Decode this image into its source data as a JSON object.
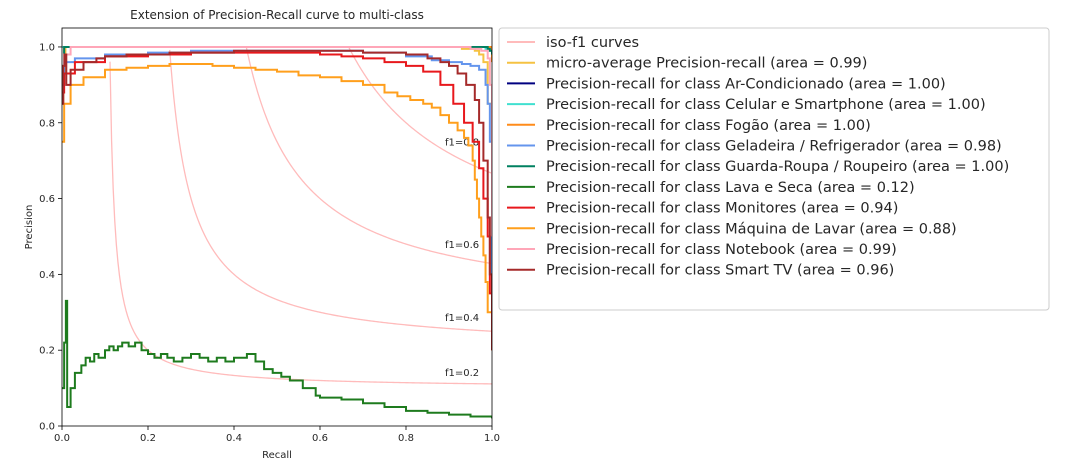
{
  "chart_data": {
    "type": "line",
    "title": "Extension of Precision-Recall curve to multi-class",
    "xlabel": "Recall",
    "ylabel": "Precision",
    "xlim": [
      0.0,
      1.0
    ],
    "ylim": [
      0.0,
      1.05
    ],
    "x_ticks": [
      "0.0",
      "0.2",
      "0.4",
      "0.6",
      "0.8",
      "1.0"
    ],
    "y_ticks": [
      "0.0",
      "0.2",
      "0.4",
      "0.6",
      "0.8",
      "1.0"
    ],
    "grid": false,
    "legend_position": "outside-right",
    "iso_f1": {
      "legend_label": "iso-f1 curves",
      "color": "#ffbbbb",
      "values": [
        0.2,
        0.4,
        0.6,
        0.8
      ],
      "labels": [
        "f1=0.2",
        "f1=0.4",
        "f1=0.6",
        "f1=0.8"
      ]
    },
    "series": [
      {
        "name": "micro-average Precision-recall (area = 0.99)",
        "color": "#f5c242",
        "x": [
          0,
          0.003,
          0.008,
          0.1,
          0.3,
          0.5,
          0.7,
          0.85,
          0.93,
          0.96,
          0.97,
          0.98,
          0.99,
          1.0
        ],
        "y": [
          0.85,
          0.93,
          1.0,
          1.0,
          1.0,
          1.0,
          1.0,
          1.0,
          0.995,
          0.99,
          0.98,
          0.96,
          0.85,
          0.25
        ]
      },
      {
        "name": "Precision-recall for class Ar-Condicionado (area = 1.00)",
        "color": "#000080",
        "x": [
          0,
          0.01,
          0.5,
          0.99,
          0.999,
          1.0
        ],
        "y": [
          1.0,
          1.0,
          1.0,
          1.0,
          1.0,
          0.98
        ]
      },
      {
        "name": "Precision-recall for class Celular e Smartphone (area = 1.00)",
        "color": "#40e0d0",
        "x": [
          0,
          0.01,
          0.5,
          0.97,
          0.985,
          0.995,
          1.0
        ],
        "y": [
          1.0,
          1.0,
          1.0,
          1.0,
          0.995,
          0.99,
          0.97
        ]
      },
      {
        "name": "Precision-recall for class Fogão (area = 1.00)",
        "color": "#ff8c1a",
        "x": [
          0,
          0.005,
          0.01,
          0.5,
          0.995,
          1.0
        ],
        "y": [
          0.9,
          1.0,
          1.0,
          1.0,
          1.0,
          0.96
        ]
      },
      {
        "name": "Precision-recall for class Geladeira / Refrigerador (area = 0.98)",
        "color": "#6495ed",
        "x": [
          0,
          0.005,
          0.03,
          0.1,
          0.2,
          0.3,
          0.4,
          0.5,
          0.6,
          0.7,
          0.8,
          0.86,
          0.9,
          0.93,
          0.95,
          0.97,
          0.985,
          0.99,
          0.995,
          1.0
        ],
        "y": [
          0.9,
          0.96,
          0.97,
          0.98,
          0.985,
          0.99,
          0.99,
          0.99,
          0.99,
          0.985,
          0.975,
          0.965,
          0.96,
          0.955,
          0.95,
          0.94,
          0.9,
          0.85,
          0.75,
          0.3
        ]
      },
      {
        "name": "Precision-recall for class Guarda-Roupa / Roupeiro (area = 1.00)",
        "color": "#008060",
        "x": [
          0,
          0.005,
          0.01,
          0.5,
          0.98,
          0.99,
          0.995,
          1.0
        ],
        "y": [
          0.95,
          1.0,
          1.0,
          1.0,
          1.0,
          0.995,
          0.99,
          0.98
        ]
      },
      {
        "name": "Precision-recall for class Lava e Seca (area = 0.12)",
        "color": "#1e7b1e",
        "x": [
          0,
          0.005,
          0.009,
          0.012,
          0.02,
          0.03,
          0.045,
          0.055,
          0.065,
          0.075,
          0.085,
          0.1,
          0.11,
          0.12,
          0.13,
          0.14,
          0.155,
          0.17,
          0.185,
          0.2,
          0.215,
          0.23,
          0.245,
          0.26,
          0.28,
          0.3,
          0.32,
          0.34,
          0.36,
          0.38,
          0.4,
          0.43,
          0.45,
          0.47,
          0.49,
          0.51,
          0.53,
          0.56,
          0.59,
          0.6,
          0.65,
          0.7,
          0.75,
          0.8,
          0.85,
          0.9,
          0.95,
          1.0
        ],
        "y": [
          0.1,
          0.22,
          0.33,
          0.05,
          0.1,
          0.14,
          0.16,
          0.18,
          0.17,
          0.19,
          0.18,
          0.2,
          0.21,
          0.2,
          0.21,
          0.22,
          0.21,
          0.22,
          0.2,
          0.19,
          0.18,
          0.19,
          0.18,
          0.17,
          0.18,
          0.19,
          0.18,
          0.17,
          0.18,
          0.17,
          0.18,
          0.19,
          0.17,
          0.15,
          0.14,
          0.13,
          0.12,
          0.1,
          0.08,
          0.075,
          0.07,
          0.06,
          0.05,
          0.04,
          0.035,
          0.03,
          0.025,
          0.02
        ]
      },
      {
        "name": "Precision-recall for class Monitores (area = 0.94)",
        "color": "#e8181c",
        "x": [
          0,
          0.005,
          0.03,
          0.1,
          0.2,
          0.3,
          0.4,
          0.5,
          0.6,
          0.65,
          0.7,
          0.75,
          0.8,
          0.84,
          0.88,
          0.91,
          0.935,
          0.955,
          0.97,
          0.98,
          0.99,
          0.995,
          1.0
        ],
        "y": [
          0.88,
          0.93,
          0.96,
          0.975,
          0.98,
          0.985,
          0.985,
          0.985,
          0.98,
          0.975,
          0.97,
          0.96,
          0.95,
          0.935,
          0.9,
          0.85,
          0.8,
          0.75,
          0.68,
          0.6,
          0.5,
          0.35,
          0.2
        ]
      },
      {
        "name": "Precision-recall for class Máquina de Lavar (area = 0.88)",
        "color": "#ff9f1c",
        "x": [
          0,
          0.005,
          0.02,
          0.05,
          0.1,
          0.15,
          0.2,
          0.25,
          0.3,
          0.35,
          0.4,
          0.45,
          0.5,
          0.55,
          0.6,
          0.65,
          0.7,
          0.75,
          0.78,
          0.81,
          0.84,
          0.86,
          0.88,
          0.9,
          0.92,
          0.935,
          0.945,
          0.955,
          0.96,
          0.965,
          0.97,
          0.975,
          0.98,
          0.985,
          0.99,
          1.0
        ],
        "y": [
          0.75,
          0.85,
          0.9,
          0.92,
          0.94,
          0.945,
          0.95,
          0.955,
          0.955,
          0.95,
          0.945,
          0.94,
          0.935,
          0.925,
          0.92,
          0.91,
          0.9,
          0.88,
          0.87,
          0.86,
          0.85,
          0.84,
          0.82,
          0.8,
          0.78,
          0.76,
          0.74,
          0.7,
          0.65,
          0.6,
          0.55,
          0.5,
          0.45,
          0.38,
          0.3,
          0.2
        ]
      },
      {
        "name": "Precision-recall for class Notebook (area = 0.99)",
        "color": "#ffa6b8",
        "x": [
          0,
          0.005,
          0.02,
          0.2,
          0.5,
          0.8,
          0.95,
          0.975,
          0.99,
          0.995,
          1.0
        ],
        "y": [
          0.95,
          0.98,
          1.0,
          1.0,
          1.0,
          1.0,
          0.995,
          0.99,
          0.97,
          0.9,
          0.5
        ]
      },
      {
        "name": "Precision-recall for class Smart TV (area = 0.96)",
        "color": "#a52a2a",
        "x": [
          0,
          0.003,
          0.006,
          0.01,
          0.02,
          0.05,
          0.08,
          0.1,
          0.15,
          0.2,
          0.25,
          0.3,
          0.4,
          0.5,
          0.6,
          0.7,
          0.75,
          0.8,
          0.85,
          0.88,
          0.9,
          0.92,
          0.94,
          0.96,
          0.97,
          0.98,
          0.99,
          0.995,
          1.0
        ],
        "y": [
          0.85,
          0.95,
          0.98,
          0.9,
          0.94,
          0.96,
          0.97,
          0.975,
          0.98,
          0.98,
          0.985,
          0.985,
          0.99,
          0.99,
          0.99,
          0.985,
          0.985,
          0.98,
          0.97,
          0.96,
          0.95,
          0.93,
          0.9,
          0.86,
          0.8,
          0.7,
          0.55,
          0.4,
          0.2
        ]
      }
    ]
  }
}
